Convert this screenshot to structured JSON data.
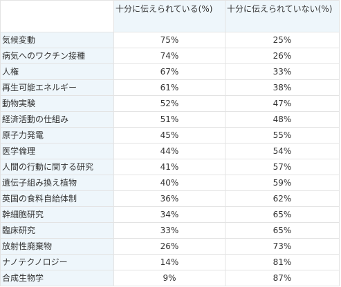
{
  "chart_data": {
    "type": "table",
    "columns": [
      "",
      "十分に伝えられている(%)",
      "十分に伝えられていない(%)"
    ],
    "rows": [
      {
        "topic": "気候変動",
        "covered": "75%",
        "not_covered": "25%"
      },
      {
        "topic": "病気へのワクチン接種",
        "covered": "74%",
        "not_covered": "26%"
      },
      {
        "topic": "人権",
        "covered": "67%",
        "not_covered": "33%"
      },
      {
        "topic": "再生可能エネルギー",
        "covered": "61%",
        "not_covered": "38%"
      },
      {
        "topic": "動物実験",
        "covered": "52%",
        "not_covered": "47%"
      },
      {
        "topic": "経済活動の仕組み",
        "covered": "51%",
        "not_covered": "48%"
      },
      {
        "topic": "原子力発電",
        "covered": "45%",
        "not_covered": "55%"
      },
      {
        "topic": "医学倫理",
        "covered": "44%",
        "not_covered": "54%"
      },
      {
        "topic": "人間の行動に関する研究",
        "covered": "41%",
        "not_covered": "57%"
      },
      {
        "topic": "遺伝子組み換え植物",
        "covered": "40%",
        "not_covered": "59%"
      },
      {
        "topic": "英国の食料自給体制",
        "covered": "36%",
        "not_covered": "62%"
      },
      {
        "topic": "幹細胞研究",
        "covered": "34%",
        "not_covered": "65%"
      },
      {
        "topic": "臨床研究",
        "covered": "33%",
        "not_covered": "65%"
      },
      {
        "topic": "放射性廃棄物",
        "covered": "26%",
        "not_covered": "73%"
      },
      {
        "topic": "ナノテクノロジー",
        "covered": "14%",
        "not_covered": "81%"
      },
      {
        "topic": "合成生物学",
        "covered": "9%",
        "not_covered": "87%"
      }
    ]
  }
}
